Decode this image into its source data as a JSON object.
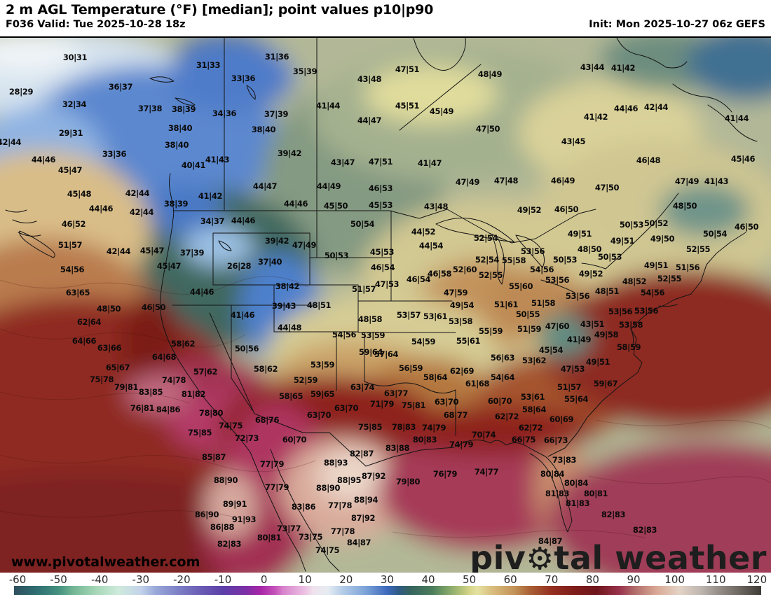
{
  "header": {
    "title": "2 m AGL Temperature (°F) [median]; point values p10|p90",
    "valid_label": "F036 Valid: Tue 2025-10-28 18z",
    "init_label": "Init: Mon 2025-10-27 06z GEFS"
  },
  "watermarks": {
    "url": "www.pivotalweather.com",
    "brand_pre": "piv",
    "gear_icon": "⚙",
    "brand_post": "tal weather"
  },
  "colorbar": {
    "unit": "°F",
    "ticks": [
      "-60",
      "-50",
      "-40",
      "-30",
      "-20",
      "-10",
      "0",
      "10",
      "20",
      "30",
      "40",
      "50",
      "60",
      "70",
      "80",
      "90",
      "100",
      "110",
      "120"
    ],
    "stops": [
      [
        0,
        "#2f4f5e"
      ],
      [
        3,
        "#2e6e72"
      ],
      [
        6,
        "#45927f"
      ],
      [
        8,
        "#74b795"
      ],
      [
        11,
        "#a6d8b8"
      ],
      [
        14,
        "#cfeadc"
      ],
      [
        17,
        "#c3d3ea"
      ],
      [
        19,
        "#98a8d8"
      ],
      [
        22,
        "#7d7fc6"
      ],
      [
        25,
        "#6a5cb4"
      ],
      [
        28,
        "#5c3fa8"
      ],
      [
        31,
        "#7c2fa6"
      ],
      [
        33,
        "#a826a8"
      ],
      [
        35,
        "#c653bb"
      ],
      [
        36,
        "#d883cc"
      ],
      [
        39,
        "#ecc2e4"
      ],
      [
        40,
        "#f0e2ec"
      ],
      [
        42,
        "#e6ecf2"
      ],
      [
        44,
        "#b4cce8"
      ],
      [
        47,
        "#7da4d8"
      ],
      [
        50,
        "#3c68bc"
      ],
      [
        51.5,
        "#2f5a84"
      ],
      [
        53,
        "#35635e"
      ],
      [
        56,
        "#4b7d5c"
      ],
      [
        58,
        "#7fa468"
      ],
      [
        60,
        "#b8c47a"
      ],
      [
        61,
        "#d6d68a"
      ],
      [
        62,
        "#e5e2a2"
      ],
      [
        64,
        "#d9bd7e"
      ],
      [
        67,
        "#c29257"
      ],
      [
        69,
        "#aa6136"
      ],
      [
        72,
        "#942e20"
      ],
      [
        75,
        "#7e1d1a"
      ],
      [
        78,
        "#6f161c"
      ],
      [
        81,
        "#99324c"
      ],
      [
        83,
        "#b06a68"
      ],
      [
        86,
        "#d9a995"
      ],
      [
        89,
        "#e4d3c6"
      ],
      [
        92,
        "#bdb6b0"
      ],
      [
        94,
        "#9a938d"
      ],
      [
        97,
        "#6e6862"
      ],
      [
        100,
        "#3f3b37"
      ]
    ]
  },
  "map": {
    "points": [
      [
        "30|31",
        107,
        82
      ],
      [
        "28|29",
        30,
        131
      ],
      [
        "36|37",
        172,
        124
      ],
      [
        "32|34",
        106,
        149
      ],
      [
        "37|38",
        214,
        155
      ],
      [
        "38|39",
        262,
        156
      ],
      [
        "38|40",
        257,
        183
      ],
      [
        "29|31",
        101,
        190
      ],
      [
        "38|40",
        252,
        207
      ],
      [
        "33|36",
        163,
        220
      ],
      [
        "42|44",
        13,
        203
      ],
      [
        "44|46",
        62,
        228
      ],
      [
        "45|47",
        100,
        243
      ],
      [
        "40|41",
        276,
        236
      ],
      [
        "31|33",
        297,
        93
      ],
      [
        "31|36",
        395,
        81
      ],
      [
        "35|39",
        435,
        102
      ],
      [
        "33|36",
        347,
        112
      ],
      [
        "43|48",
        527,
        113
      ],
      [
        "41|44",
        468,
        151
      ],
      [
        "34|36",
        320,
        162
      ],
      [
        "37|39",
        394,
        163
      ],
      [
        "44|47",
        527,
        172
      ],
      [
        "38|40",
        376,
        185
      ],
      [
        "39|42",
        413,
        219
      ],
      [
        "41|43",
        310,
        228
      ],
      [
        "43|47",
        489,
        232
      ],
      [
        "47|51",
        543,
        231
      ],
      [
        "47|51",
        581,
        99
      ],
      [
        "48|49",
        699,
        106
      ],
      [
        "45|51",
        581,
        151
      ],
      [
        "45|49",
        630,
        159
      ],
      [
        "47|50",
        696,
        184
      ],
      [
        "43|45",
        818,
        202
      ],
      [
        "41|47",
        613,
        233
      ],
      [
        "43|44",
        845,
        96
      ],
      [
        "41|42",
        889,
        97
      ],
      [
        "44|46",
        893,
        155
      ],
      [
        "42|44",
        936,
        153
      ],
      [
        "41|42",
        850,
        167
      ],
      [
        "41|44",
        1051,
        169
      ],
      [
        "46|48",
        925,
        229
      ],
      [
        "45|46",
        1060,
        227
      ],
      [
        "45|48",
        113,
        277
      ],
      [
        "42|44",
        196,
        276
      ],
      [
        "38|39",
        251,
        291
      ],
      [
        "44|46",
        144,
        298
      ],
      [
        "42|44",
        202,
        303
      ],
      [
        "46|52",
        105,
        320
      ],
      [
        "51|57",
        100,
        350
      ],
      [
        "42|44",
        169,
        359
      ],
      [
        "45|47",
        217,
        358
      ],
      [
        "45|47",
        241,
        380
      ],
      [
        "54|56",
        103,
        385
      ],
      [
        "63|65",
        111,
        418
      ],
      [
        "37|39",
        274,
        361
      ],
      [
        "44|47",
        378,
        266
      ],
      [
        "44|49",
        469,
        266
      ],
      [
        "41|42",
        300,
        280
      ],
      [
        "44|46",
        422,
        291
      ],
      [
        "45|50",
        479,
        294
      ],
      [
        "34|37",
        303,
        316
      ],
      [
        "44|46",
        347,
        315
      ],
      [
        "50|54",
        517,
        320
      ],
      [
        "39|42",
        395,
        344
      ],
      [
        "47|49",
        434,
        350
      ],
      [
        "26|28",
        341,
        380
      ],
      [
        "37|40",
        385,
        374
      ],
      [
        "38|42",
        410,
        409
      ],
      [
        "50|53",
        480,
        365
      ],
      [
        "51|57",
        519,
        413
      ],
      [
        "44|46",
        288,
        417
      ],
      [
        "46|53",
        543,
        269
      ],
      [
        "45|53",
        543,
        293
      ],
      [
        "45|53",
        545,
        360
      ],
      [
        "46|54",
        546,
        382
      ],
      [
        "47|53",
        552,
        406
      ],
      [
        "47|49",
        667,
        260
      ],
      [
        "47|48",
        722,
        258
      ],
      [
        "46|49",
        803,
        258
      ],
      [
        "43|48",
        622,
        295
      ],
      [
        "49|52",
        755,
        300
      ],
      [
        "46|50",
        808,
        299
      ],
      [
        "44|52",
        604,
        331
      ],
      [
        "52|54",
        693,
        340
      ],
      [
        "44|54",
        615,
        351
      ],
      [
        "53|56",
        760,
        359
      ],
      [
        "52|54",
        695,
        371
      ],
      [
        "55|58",
        733,
        372
      ],
      [
        "50|53",
        806,
        371
      ],
      [
        "52|60",
        663,
        385
      ],
      [
        "54|56",
        773,
        385
      ],
      [
        "46|58",
        627,
        391
      ],
      [
        "46|54",
        597,
        399
      ],
      [
        "52|55",
        700,
        393
      ],
      [
        "53|56",
        795,
        400
      ],
      [
        "55|60",
        743,
        409
      ],
      [
        "47|59",
        650,
        418
      ],
      [
        "49|54",
        659,
        436
      ],
      [
        "51|61",
        722,
        435
      ],
      [
        "51|58",
        775,
        433
      ],
      [
        "49|51",
        827,
        334
      ],
      [
        "53|56",
        824,
        423
      ],
      [
        "47|50",
        866,
        268
      ],
      [
        "47|49",
        980,
        259
      ],
      [
        "41|43",
        1022,
        259
      ],
      [
        "48|50",
        977,
        294
      ],
      [
        "50|53",
        901,
        321
      ],
      [
        "50|52",
        936,
        319
      ],
      [
        "46|50",
        1065,
        324
      ],
      [
        "49|51",
        888,
        344
      ],
      [
        "49|50",
        945,
        341
      ],
      [
        "48|50",
        841,
        356
      ],
      [
        "50|54",
        1020,
        334
      ],
      [
        "52|55",
        996,
        356
      ],
      [
        "50|53",
        870,
        367
      ],
      [
        "49|51",
        936,
        379
      ],
      [
        "51|56",
        981,
        382
      ],
      [
        "49|52",
        843,
        391
      ],
      [
        "52|55",
        955,
        398
      ],
      [
        "48|52",
        905,
        402
      ],
      [
        "48|51",
        866,
        416
      ],
      [
        "54|56",
        931,
        418
      ],
      [
        "48|50",
        155,
        441
      ],
      [
        "46|50",
        219,
        439
      ],
      [
        "62|64",
        127,
        460
      ],
      [
        "64|66",
        120,
        487
      ],
      [
        "63|66",
        156,
        497
      ],
      [
        "58|62",
        261,
        491
      ],
      [
        "64|68",
        234,
        510
      ],
      [
        "65|67",
        168,
        525
      ],
      [
        "75|78",
        145,
        542
      ],
      [
        "79|81",
        180,
        553
      ],
      [
        "74|78",
        248,
        543
      ],
      [
        "83|85",
        215,
        560
      ],
      [
        "76|81",
        203,
        583
      ],
      [
        "84|86",
        240,
        585
      ],
      [
        "81|82",
        276,
        563
      ],
      [
        "39|43",
        405,
        437
      ],
      [
        "48|51",
        455,
        436
      ],
      [
        "41|46",
        346,
        450
      ],
      [
        "44|48",
        413,
        468
      ],
      [
        "48|58",
        528,
        456
      ],
      [
        "54|56",
        491,
        478
      ],
      [
        "53|59",
        532,
        479
      ],
      [
        "50|56",
        352,
        498
      ],
      [
        "57|62",
        293,
        531
      ],
      [
        "59|64",
        529,
        503
      ],
      [
        "58|62",
        379,
        527
      ],
      [
        "53|59",
        460,
        521
      ],
      [
        "52|59",
        436,
        543
      ],
      [
        "63|74",
        517,
        553
      ],
      [
        "59|65",
        460,
        563
      ],
      [
        "58|65",
        415,
        566
      ],
      [
        "63|70",
        494,
        583
      ],
      [
        "78|80",
        301,
        590
      ],
      [
        "63|70",
        455,
        593
      ],
      [
        "68|76",
        381,
        600
      ],
      [
        "74|75",
        329,
        608
      ],
      [
        "75|85",
        528,
        610
      ],
      [
        "75|85",
        285,
        618
      ],
      [
        "57|64",
        551,
        506
      ],
      [
        "71|79",
        545,
        577
      ],
      [
        "63|77",
        565,
        562
      ],
      [
        "53|57",
        583,
        450
      ],
      [
        "53|61",
        621,
        452
      ],
      [
        "50|55",
        753,
        449
      ],
      [
        "53|58",
        657,
        459
      ],
      [
        "55|59",
        700,
        473
      ],
      [
        "51|59",
        755,
        470
      ],
      [
        "47|60",
        795,
        466
      ],
      [
        "54|59",
        604,
        488
      ],
      [
        "55|61",
        668,
        487
      ],
      [
        "45|54",
        786,
        500
      ],
      [
        "56|63",
        717,
        511
      ],
      [
        "53|62",
        762,
        515
      ],
      [
        "56|59",
        586,
        526
      ],
      [
        "62|69",
        659,
        530
      ],
      [
        "58|64",
        621,
        539
      ],
      [
        "54|64",
        717,
        539
      ],
      [
        "61|68",
        681,
        548
      ],
      [
        "75|81",
        590,
        579
      ],
      [
        "63|70",
        637,
        574
      ],
      [
        "68|77",
        650,
        593
      ],
      [
        "60|70",
        713,
        573
      ],
      [
        "53|61",
        760,
        567
      ],
      [
        "62|72",
        723,
        595
      ],
      [
        "58|64",
        762,
        585
      ],
      [
        "60|69",
        801,
        599
      ],
      [
        "78|83",
        576,
        610
      ],
      [
        "74|79",
        619,
        611
      ],
      [
        "62|72",
        757,
        611
      ],
      [
        "70|74",
        690,
        621
      ],
      [
        "41|49",
        826,
        485
      ],
      [
        "47|53",
        817,
        527
      ],
      [
        "51|57",
        812,
        553
      ],
      [
        "55|64",
        822,
        570
      ],
      [
        "53|56",
        885,
        445
      ],
      [
        "53|56",
        922,
        444
      ],
      [
        "43|51",
        845,
        463
      ],
      [
        "53|58",
        900,
        464
      ],
      [
        "49|58",
        865,
        478
      ],
      [
        "58|59",
        897,
        496
      ],
      [
        "49|51",
        853,
        517
      ],
      [
        "59|67",
        864,
        548
      ],
      [
        "72|73",
        352,
        626
      ],
      [
        "60|70",
        420,
        628
      ],
      [
        "85|87",
        305,
        653
      ],
      [
        "82|87",
        516,
        648
      ],
      [
        "88|93",
        479,
        661
      ],
      [
        "77|79",
        388,
        663
      ],
      [
        "88|90",
        322,
        686
      ],
      [
        "88|95",
        498,
        686
      ],
      [
        "87|92",
        533,
        680
      ],
      [
        "77|79",
        395,
        696
      ],
      [
        "88|90",
        468,
        697
      ],
      [
        "89|91",
        335,
        720
      ],
      [
        "88|94",
        522,
        714
      ],
      [
        "83|86",
        433,
        724
      ],
      [
        "77|78",
        485,
        722
      ],
      [
        "86|90",
        295,
        735
      ],
      [
        "91|93",
        348,
        742
      ],
      [
        "87|92",
        518,
        740
      ],
      [
        "86|88",
        317,
        753
      ],
      [
        "73|77",
        412,
        755
      ],
      [
        "77|78",
        489,
        759
      ],
      [
        "73|75",
        443,
        767
      ],
      [
        "80|81",
        384,
        768
      ],
      [
        "82|83",
        327,
        777
      ],
      [
        "84|87",
        512,
        775
      ],
      [
        "74|75",
        467,
        786
      ],
      [
        "80|83",
        606,
        628
      ],
      [
        "74|79",
        658,
        635
      ],
      [
        "66|75",
        747,
        628
      ],
      [
        "66|73",
        793,
        629
      ],
      [
        "83|88",
        567,
        640
      ],
      [
        "73|83",
        805,
        657
      ],
      [
        "76|79",
        635,
        677
      ],
      [
        "74|77",
        694,
        674
      ],
      [
        "80|84",
        788,
        677
      ],
      [
        "79|80",
        582,
        688
      ],
      [
        "80|84",
        822,
        690
      ],
      [
        "81|83",
        795,
        705
      ],
      [
        "81|83",
        824,
        719
      ],
      [
        "84|87",
        785,
        773
      ],
      [
        "80|81",
        850,
        705
      ],
      [
        "82|83",
        875,
        735
      ],
      [
        "82|83",
        920,
        757
      ]
    ]
  }
}
